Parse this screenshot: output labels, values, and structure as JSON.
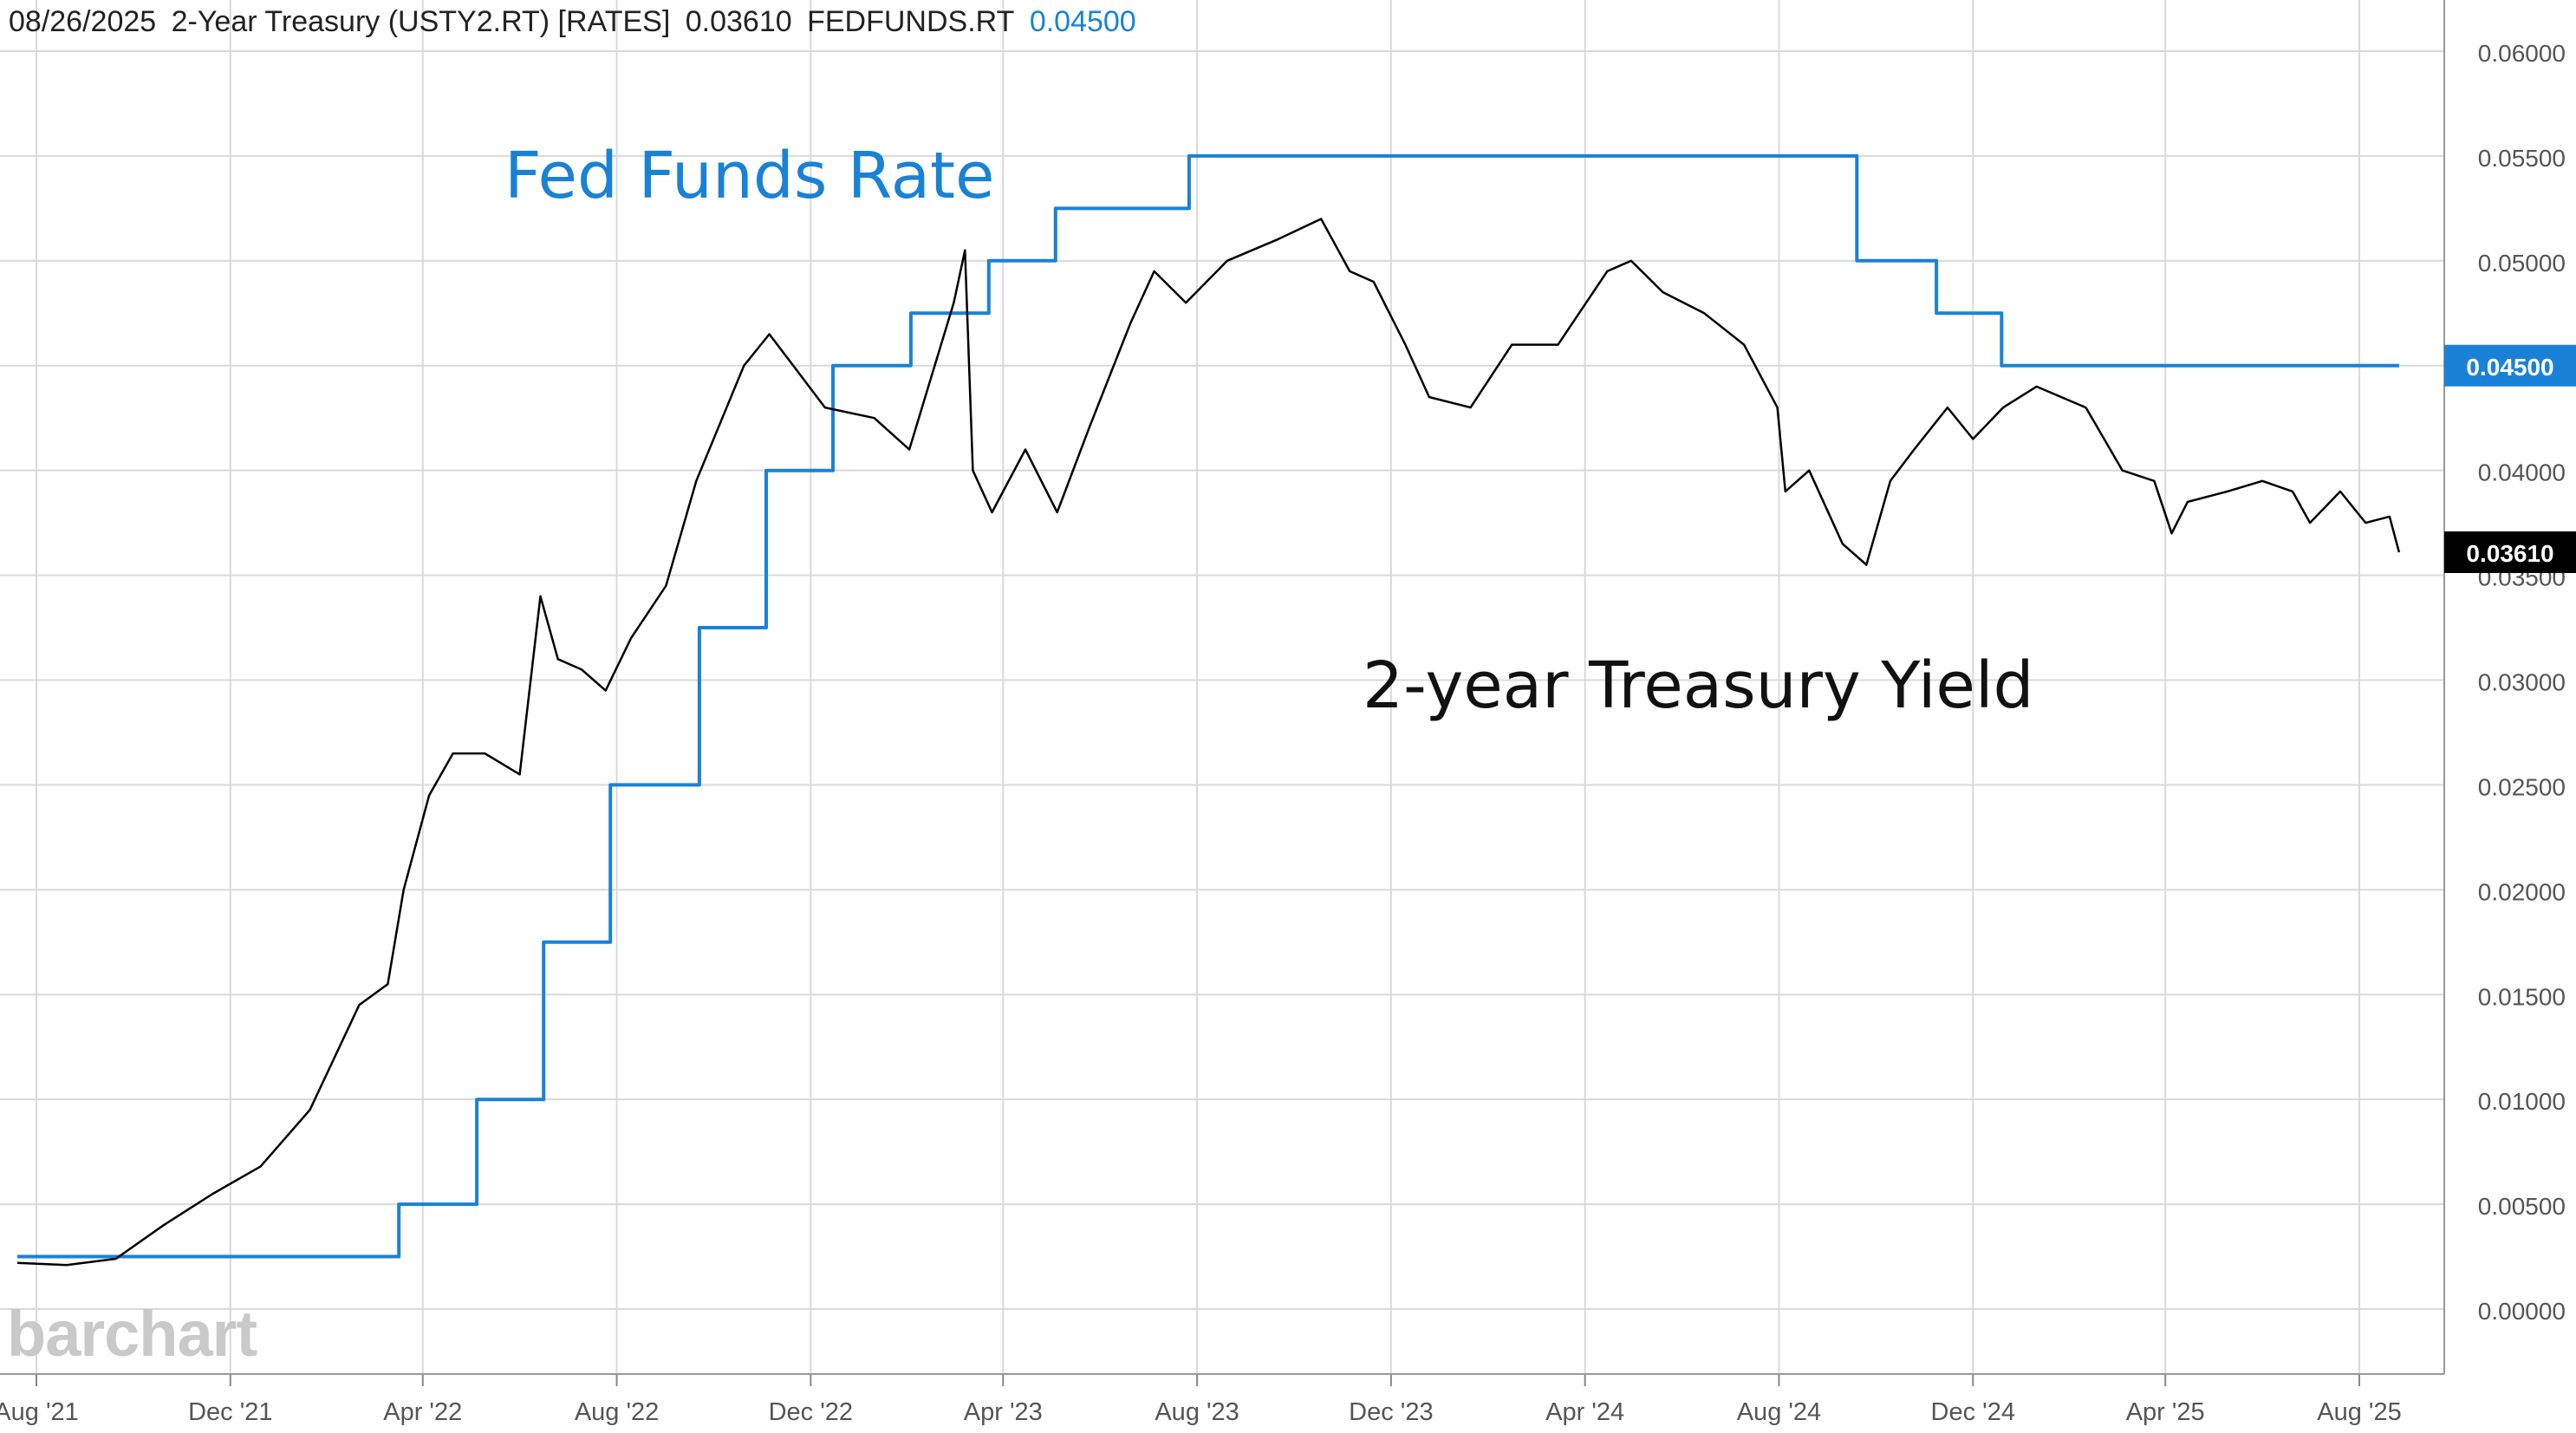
{
  "header": {
    "date": "08/26/2025",
    "series1_name": "2-Year Treasury (USTY2.RT) [RATES]",
    "series1_value": "0.03610",
    "series2_name": "FEDFUNDS.RT",
    "series2_value": "0.04500"
  },
  "annotations": {
    "fed_label": "Fed Funds Rate",
    "treasury_label": "2-year Treasury Yield",
    "logo": "barchart"
  },
  "colors": {
    "fed": "#1a82d6",
    "treasury": "#000000",
    "grid": "#d9d9d9"
  },
  "chart_data": {
    "type": "line",
    "title": "",
    "xlabel": "",
    "ylabel": "",
    "ylim": [
      -0.003,
      0.0625
    ],
    "xlim": [
      "2021-07-20",
      "2025-10-04"
    ],
    "grid": true,
    "y_ticks": [
      "0.00000",
      "0.00500",
      "0.01000",
      "0.01500",
      "0.02000",
      "0.02500",
      "0.03000",
      "0.03500",
      "0.04000",
      "0.04500",
      "0.05000",
      "0.05500",
      "0.06000"
    ],
    "x_ticks": [
      {
        "date": "2021-08-01",
        "label": "Aug '21"
      },
      {
        "date": "2021-12-01",
        "label": "Dec '21"
      },
      {
        "date": "2022-04-01",
        "label": "Apr '22"
      },
      {
        "date": "2022-08-01",
        "label": "Aug '22"
      },
      {
        "date": "2022-12-01",
        "label": "Dec '22"
      },
      {
        "date": "2023-04-01",
        "label": "Apr '23"
      },
      {
        "date": "2023-08-01",
        "label": "Aug '23"
      },
      {
        "date": "2023-12-01",
        "label": "Dec '23"
      },
      {
        "date": "2024-04-01",
        "label": "Apr '24"
      },
      {
        "date": "2024-08-01",
        "label": "Aug '24"
      },
      {
        "date": "2024-12-01",
        "label": "Dec '24"
      },
      {
        "date": "2025-04-01",
        "label": "Apr '25"
      },
      {
        "date": "2025-08-01",
        "label": "Aug '25"
      }
    ],
    "last_value_labels": [
      {
        "series": "FEDFUNDS.RT",
        "value": "0.04500"
      },
      {
        "series": "USTY2.RT",
        "value": "0.03610"
      }
    ],
    "series": [
      {
        "name": "FEDFUNDS.RT",
        "step": true,
        "points": [
          [
            "2021-07-20",
            0.0025
          ],
          [
            "2022-03-17",
            0.005
          ],
          [
            "2022-05-05",
            0.01
          ],
          [
            "2022-06-16",
            0.0175
          ],
          [
            "2022-07-28",
            0.025
          ],
          [
            "2022-09-22",
            0.0325
          ],
          [
            "2022-11-03",
            0.04
          ],
          [
            "2022-12-15",
            0.045
          ],
          [
            "2023-02-02",
            0.0475
          ],
          [
            "2023-03-23",
            0.05
          ],
          [
            "2023-05-04",
            0.0525
          ],
          [
            "2023-07-27",
            0.055
          ],
          [
            "2024-09-19",
            0.05
          ],
          [
            "2024-11-08",
            0.0475
          ],
          [
            "2024-12-19",
            0.045
          ],
          [
            "2025-08-26",
            0.045
          ]
        ]
      },
      {
        "name": "USTY2.RT",
        "points": [
          [
            "2021-07-20",
            0.0022
          ],
          [
            "2021-08-20",
            0.0021
          ],
          [
            "2021-09-20",
            0.0024
          ],
          [
            "2021-10-20",
            0.004
          ],
          [
            "2021-11-20",
            0.0055
          ],
          [
            "2021-12-20",
            0.0068
          ],
          [
            "2022-01-20",
            0.0095
          ],
          [
            "2022-02-20",
            0.0145
          ],
          [
            "2022-03-10",
            0.0155
          ],
          [
            "2022-03-20",
            0.02
          ],
          [
            "2022-04-05",
            0.0245
          ],
          [
            "2022-04-20",
            0.0265
          ],
          [
            "2022-05-10",
            0.0265
          ],
          [
            "2022-06-01",
            0.0255
          ],
          [
            "2022-06-14",
            0.034
          ],
          [
            "2022-06-25",
            0.031
          ],
          [
            "2022-07-10",
            0.0305
          ],
          [
            "2022-07-25",
            0.0295
          ],
          [
            "2022-08-10",
            0.032
          ],
          [
            "2022-09-01",
            0.0345
          ],
          [
            "2022-09-20",
            0.0395
          ],
          [
            "2022-10-20",
            0.045
          ],
          [
            "2022-11-05",
            0.0465
          ],
          [
            "2022-11-20",
            0.045
          ],
          [
            "2022-12-10",
            0.043
          ],
          [
            "2023-01-10",
            0.0425
          ],
          [
            "2023-02-01",
            0.041
          ],
          [
            "2023-03-01",
            0.048
          ],
          [
            "2023-03-08",
            0.0505
          ],
          [
            "2023-03-13",
            0.04
          ],
          [
            "2023-03-25",
            0.038
          ],
          [
            "2023-04-15",
            0.041
          ],
          [
            "2023-05-05",
            0.038
          ],
          [
            "2023-05-25",
            0.042
          ],
          [
            "2023-06-20",
            0.047
          ],
          [
            "2023-07-05",
            0.0495
          ],
          [
            "2023-07-25",
            0.048
          ],
          [
            "2023-08-20",
            0.05
          ],
          [
            "2023-09-20",
            0.051
          ],
          [
            "2023-10-18",
            0.052
          ],
          [
            "2023-11-05",
            0.0495
          ],
          [
            "2023-11-20",
            0.049
          ],
          [
            "2023-12-10",
            0.046
          ],
          [
            "2023-12-25",
            0.0435
          ],
          [
            "2024-01-20",
            0.043
          ],
          [
            "2024-02-15",
            0.046
          ],
          [
            "2024-03-15",
            0.046
          ],
          [
            "2024-04-15",
            0.0495
          ],
          [
            "2024-04-30",
            0.05
          ],
          [
            "2024-05-20",
            0.0485
          ],
          [
            "2024-06-15",
            0.0475
          ],
          [
            "2024-07-10",
            0.046
          ],
          [
            "2024-07-31",
            0.043
          ],
          [
            "2024-08-05",
            0.039
          ],
          [
            "2024-08-20",
            0.04
          ],
          [
            "2024-09-10",
            0.0365
          ],
          [
            "2024-09-25",
            0.0355
          ],
          [
            "2024-10-10",
            0.0395
          ],
          [
            "2024-10-25",
            0.041
          ],
          [
            "2024-11-15",
            0.043
          ],
          [
            "2024-12-01",
            0.0415
          ],
          [
            "2024-12-20",
            0.043
          ],
          [
            "2025-01-10",
            0.044
          ],
          [
            "2025-02-10",
            0.043
          ],
          [
            "2025-03-05",
            0.04
          ],
          [
            "2025-03-25",
            0.0395
          ],
          [
            "2025-04-05",
            0.037
          ],
          [
            "2025-04-15",
            0.0385
          ],
          [
            "2025-05-10",
            0.039
          ],
          [
            "2025-06-01",
            0.0395
          ],
          [
            "2025-06-20",
            0.039
          ],
          [
            "2025-07-01",
            0.0375
          ],
          [
            "2025-07-20",
            0.039
          ],
          [
            "2025-08-05",
            0.0375
          ],
          [
            "2025-08-20",
            0.0378
          ],
          [
            "2025-08-26",
            0.0361
          ]
        ]
      }
    ]
  }
}
